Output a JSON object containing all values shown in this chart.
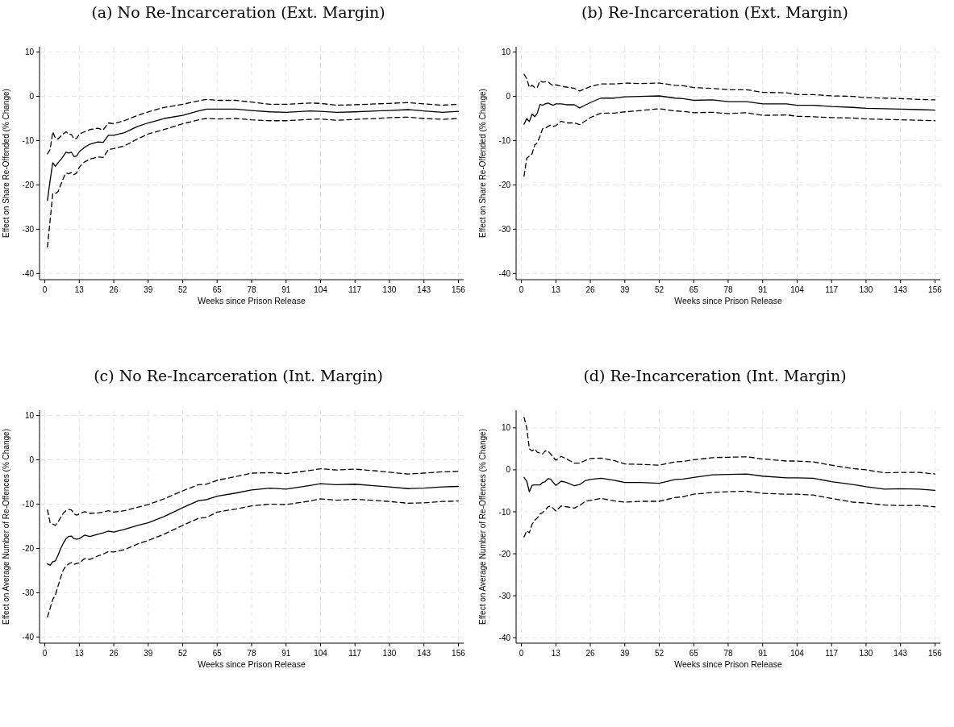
{
  "chart_data": [
    {
      "type": "line",
      "title": "(a) No Re-Incarceration (Ext. Margin)",
      "xlabel": "Weeks since Prison Release",
      "ylabel": "Effect on Share Re-Offended (% Change)",
      "xlim": [
        -2,
        158
      ],
      "ylim": [
        -41.4,
        11.2
      ],
      "xticks": [
        0,
        13,
        26,
        39,
        52,
        65,
        78,
        91,
        104,
        117,
        130,
        143,
        156
      ],
      "yticks": [
        -40,
        -30,
        -20,
        -10,
        0,
        10
      ],
      "grid": true,
      "marker": "none",
      "x": [
        1,
        2,
        3,
        4,
        5,
        6,
        7,
        8,
        9,
        10,
        11,
        12,
        13,
        15,
        17,
        20,
        22,
        24,
        26,
        30,
        35,
        39,
        45,
        52,
        58,
        61,
        65,
        72,
        78,
        85,
        91,
        100,
        104,
        110,
        117,
        125,
        130,
        137,
        143,
        150,
        156
      ],
      "series": [
        {
          "color": "#000000",
          "line_style": "solid",
          "values": [
            -23.5,
            -19,
            -15,
            -15.8,
            -15,
            -14.3,
            -13.5,
            -12.6,
            -12.8,
            -12.6,
            -13.6,
            -13.5,
            -12.5,
            -11.5,
            -10.8,
            -10.3,
            -10.4,
            -8.8,
            -8.8,
            -8.2,
            -6.8,
            -6,
            -5,
            -4.3,
            -3.3,
            -2.9,
            -2.9,
            -2.9,
            -3.2,
            -3.5,
            -3.6,
            -3.3,
            -3.4,
            -3.6,
            -3.5,
            -3.3,
            -3.2,
            -3,
            -3.3,
            -3.6,
            -3.4
          ]
        },
        {
          "color": "#000000",
          "line_style": "dashed",
          "values": [
            -13,
            -12,
            -8,
            -9.5,
            -9.6,
            -9,
            -8.5,
            -8,
            -8.5,
            -8.6,
            -9.6,
            -9.5,
            -8.5,
            -8,
            -7.5,
            -7.2,
            -7.6,
            -6,
            -6.2,
            -5.5,
            -4.3,
            -3.5,
            -2.5,
            -1.8,
            -1,
            -0.7,
            -0.9,
            -0.9,
            -1.3,
            -1.8,
            -1.8,
            -1.5,
            -1.6,
            -2,
            -1.9,
            -1.7,
            -1.6,
            -1.4,
            -1.7,
            -2,
            -1.8
          ]
        },
        {
          "color": "#000000",
          "line_style": "dashed",
          "values": [
            -34,
            -28,
            -22,
            -22,
            -21.5,
            -20,
            -18.5,
            -17.3,
            -17.5,
            -17.2,
            -17.7,
            -17.3,
            -16,
            -14.8,
            -14.2,
            -13.7,
            -13.8,
            -12,
            -11.8,
            -11.2,
            -9.6,
            -8.5,
            -7.5,
            -6.2,
            -5.3,
            -5,
            -5.1,
            -5,
            -5.3,
            -5.5,
            -5.5,
            -5.2,
            -5.1,
            -5.4,
            -5.2,
            -5,
            -4.8,
            -4.7,
            -5,
            -5.2,
            -5
          ]
        }
      ]
    },
    {
      "type": "line",
      "title": "(b) Re-Incarceration (Ext. Margin)",
      "xlabel": "Weeks since Prison Release",
      "ylabel": "Effect on Share Re-Offended (% Change)",
      "xlim": [
        -2,
        158
      ],
      "ylim": [
        -41.4,
        11.2
      ],
      "xticks": [
        0,
        13,
        26,
        39,
        52,
        65,
        78,
        91,
        104,
        117,
        130,
        143,
        156
      ],
      "yticks": [
        -40,
        -30,
        -20,
        -10,
        0,
        10
      ],
      "grid": true,
      "marker": "none",
      "x": [
        1,
        2,
        3,
        4,
        5,
        6,
        7,
        8,
        9,
        10,
        11,
        12,
        13,
        15,
        17,
        20,
        22,
        24,
        26,
        30,
        35,
        39,
        45,
        52,
        58,
        61,
        65,
        72,
        78,
        85,
        91,
        100,
        104,
        110,
        117,
        125,
        130,
        137,
        143,
        150,
        156
      ],
      "series": [
        {
          "color": "#000000",
          "line_style": "solid",
          "values": [
            -6.3,
            -5,
            -5.7,
            -4,
            -4.6,
            -3.8,
            -1.8,
            -2,
            -1.7,
            -1.5,
            -1.8,
            -2,
            -1.7,
            -1.7,
            -1.9,
            -1.9,
            -2.6,
            -2,
            -1.4,
            -0.4,
            -0.4,
            -0.1,
            0,
            0.1,
            -0.4,
            -0.5,
            -0.9,
            -0.8,
            -1.2,
            -1.2,
            -1.7,
            -1.7,
            -2,
            -2,
            -2.3,
            -2.5,
            -2.7,
            -2.8,
            -2.9,
            -3,
            -3.1
          ]
        },
        {
          "color": "#000000",
          "line_style": "dashed",
          "values": [
            5,
            4,
            2,
            2.5,
            2,
            2,
            3.5,
            3.2,
            3.3,
            3.3,
            2.8,
            2.4,
            2.6,
            2.3,
            2.1,
            1.8,
            1.2,
            1.7,
            2.2,
            2.8,
            2.8,
            3,
            2.9,
            3,
            2.5,
            2.4,
            2,
            1.8,
            1.5,
            1.5,
            0.9,
            0.8,
            0.4,
            0.4,
            0.1,
            0,
            -0.3,
            -0.4,
            -0.5,
            -0.7,
            -0.8
          ]
        },
        {
          "color": "#000000",
          "line_style": "dashed",
          "values": [
            -18,
            -14,
            -13.5,
            -13,
            -11,
            -10.5,
            -9,
            -7.3,
            -7.2,
            -6.8,
            -6.5,
            -6.8,
            -6.6,
            -5.6,
            -6,
            -6,
            -6.4,
            -5.6,
            -4.8,
            -3.8,
            -3.8,
            -3.5,
            -3.2,
            -2.8,
            -3.3,
            -3.4,
            -3.7,
            -3.6,
            -3.9,
            -3.7,
            -4.3,
            -4.2,
            -4.5,
            -4.6,
            -4.8,
            -4.9,
            -5.1,
            -5.2,
            -5.3,
            -5.4,
            -5.5
          ]
        }
      ]
    },
    {
      "type": "line",
      "title": "(c) No Re-Incarceration (Int. Margin)",
      "xlabel": "Weeks since Prison Release",
      "ylabel": "Effect on Average Number of Re-Offences (% Change)",
      "xlim": [
        -2,
        158
      ],
      "ylim": [
        -41.4,
        11.2
      ],
      "xticks": [
        0,
        13,
        26,
        39,
        52,
        65,
        78,
        91,
        104,
        117,
        130,
        143,
        156
      ],
      "yticks": [
        -40,
        -30,
        -20,
        -10,
        0,
        10
      ],
      "grid": true,
      "marker": "none",
      "x": [
        1,
        2,
        3,
        4,
        5,
        6,
        7,
        8,
        9,
        10,
        11,
        12,
        13,
        15,
        17,
        20,
        22,
        24,
        26,
        30,
        35,
        39,
        45,
        52,
        58,
        61,
        65,
        72,
        78,
        85,
        91,
        100,
        104,
        110,
        117,
        125,
        130,
        137,
        143,
        150,
        156
      ],
      "series": [
        {
          "color": "#000000",
          "line_style": "solid",
          "values": [
            -23.5,
            -23.8,
            -23,
            -22.8,
            -21.5,
            -20,
            -18.8,
            -17.8,
            -17.3,
            -17.2,
            -17.8,
            -17.9,
            -17.8,
            -17,
            -17.3,
            -16.8,
            -16.5,
            -16.1,
            -16.3,
            -15.7,
            -14.8,
            -14.2,
            -12.8,
            -10.8,
            -9.2,
            -9,
            -8.2,
            -7.5,
            -6.8,
            -6.4,
            -6.6,
            -5.8,
            -5.4,
            -5.6,
            -5.5,
            -5.9,
            -6.1,
            -6.5,
            -6.4,
            -6.1,
            -6
          ]
        },
        {
          "color": "#000000",
          "line_style": "dashed",
          "values": [
            -11.3,
            -14.2,
            -14.5,
            -14.8,
            -14,
            -13,
            -12,
            -11.5,
            -11.2,
            -11.3,
            -12.2,
            -12.5,
            -12.2,
            -11.7,
            -12.1,
            -12,
            -11.8,
            -11.5,
            -11.8,
            -11.5,
            -10.7,
            -10.1,
            -8.8,
            -7,
            -5.6,
            -5.5,
            -4.6,
            -3.8,
            -3,
            -2.9,
            -3.1,
            -2.4,
            -2,
            -2.3,
            -2.1,
            -2.5,
            -2.8,
            -3.2,
            -3,
            -2.7,
            -2.6
          ]
        },
        {
          "color": "#000000",
          "line_style": "dashed",
          "values": [
            -35.5,
            -33.5,
            -31.5,
            -30.5,
            -28.5,
            -26.5,
            -24.8,
            -24,
            -23.5,
            -23.2,
            -23.6,
            -23.4,
            -23.3,
            -22.3,
            -22.5,
            -21.7,
            -21.3,
            -20.7,
            -20.8,
            -20.3,
            -19,
            -18.2,
            -16.8,
            -14.8,
            -13.2,
            -13,
            -11.8,
            -11.1,
            -10.4,
            -10,
            -10.1,
            -9.3,
            -8.8,
            -9.1,
            -8.9,
            -9.2,
            -9.4,
            -9.8,
            -9.7,
            -9.4,
            -9.3
          ]
        }
      ]
    },
    {
      "type": "line",
      "title": "(d) Re-Incarceration (Int. Margin)",
      "xlabel": "Weeks since Prison Release",
      "ylabel": "Effect on Average Number of Re-Offences (% Change)",
      "xlim": [
        -2,
        158
      ],
      "ylim": [
        -41.3,
        14.2
      ],
      "xticks": [
        0,
        13,
        26,
        39,
        52,
        65,
        78,
        91,
        104,
        117,
        130,
        143,
        156
      ],
      "yticks": [
        -40,
        -30,
        -20,
        -10,
        0,
        10
      ],
      "grid": true,
      "marker": "none",
      "x": [
        1,
        2,
        3,
        4,
        5,
        6,
        7,
        8,
        9,
        10,
        11,
        12,
        13,
        15,
        17,
        20,
        22,
        24,
        26,
        30,
        35,
        39,
        45,
        52,
        58,
        61,
        65,
        72,
        78,
        85,
        91,
        100,
        104,
        110,
        117,
        125,
        130,
        137,
        143,
        150,
        156
      ],
      "series": [
        {
          "color": "#000000",
          "line_style": "solid",
          "values": [
            -1.8,
            -2.7,
            -5.2,
            -3.7,
            -3.6,
            -3.6,
            -3.6,
            -3,
            -2.8,
            -2.1,
            -2.2,
            -3,
            -3.7,
            -2.7,
            -3,
            -3.8,
            -3.5,
            -2.6,
            -2.3,
            -2,
            -2.5,
            -3,
            -3,
            -3.2,
            -2.3,
            -2.2,
            -1.8,
            -1.2,
            -1.1,
            -1,
            -1.5,
            -1.9,
            -1.9,
            -2,
            -2.8,
            -3.5,
            -4,
            -4.6,
            -4.5,
            -4.6,
            -4.9
          ]
        },
        {
          "color": "#000000",
          "line_style": "dashed",
          "values": [
            12.5,
            10,
            5,
            4.5,
            5,
            4.2,
            4,
            3.8,
            4.5,
            4.5,
            3.8,
            3,
            2.3,
            3.2,
            2.6,
            1.6,
            1.6,
            2.2,
            2.7,
            2.8,
            2.2,
            1.4,
            1.3,
            1.1,
            1.9,
            2,
            2.4,
            2.9,
            3,
            3.1,
            2.6,
            2.1,
            2.1,
            1.9,
            1.1,
            0.3,
            0,
            -0.7,
            -0.6,
            -0.6,
            -1
          ]
        },
        {
          "color": "#000000",
          "line_style": "dashed",
          "values": [
            -16,
            -14.5,
            -15,
            -13,
            -12,
            -11.5,
            -10.5,
            -10.2,
            -9.6,
            -8.8,
            -8.6,
            -9.2,
            -9.8,
            -8.6,
            -8.8,
            -9.1,
            -8.5,
            -7.5,
            -7.3,
            -6.8,
            -7.4,
            -7.7,
            -7.5,
            -7.5,
            -6.6,
            -6.4,
            -5.8,
            -5.4,
            -5.2,
            -5.1,
            -5.6,
            -5.8,
            -5.8,
            -6,
            -6.8,
            -7.7,
            -7.9,
            -8.4,
            -8.5,
            -8.5,
            -8.8
          ]
        }
      ]
    }
  ]
}
